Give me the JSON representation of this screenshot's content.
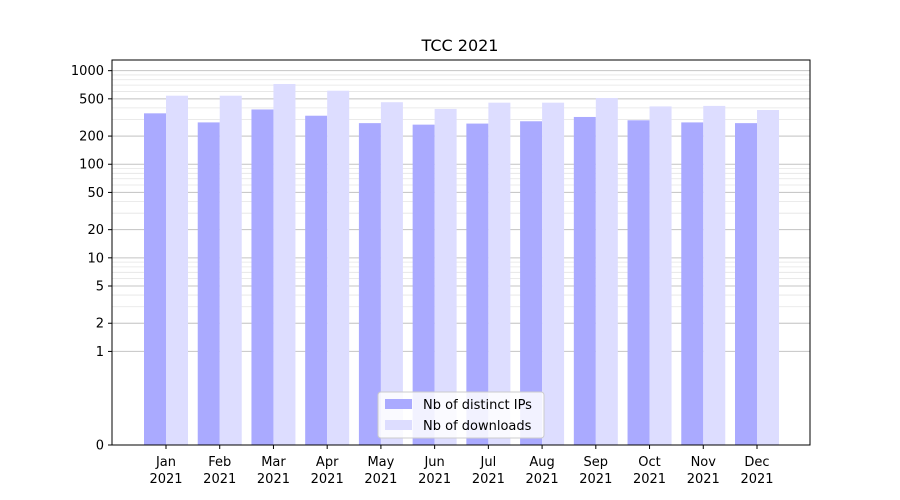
{
  "chart_data": {
    "type": "bar",
    "title": "TCC 2021",
    "xlabel": "",
    "ylabel": "",
    "yscale": "symlog",
    "ylim": [
      0,
      1300
    ],
    "yticks": [
      0,
      1,
      2,
      5,
      10,
      20,
      50,
      100,
      200,
      500,
      1000
    ],
    "ytick_labels": [
      "0",
      "1",
      "2",
      "5",
      "10",
      "20",
      "50",
      "100",
      "200",
      "500",
      "1000"
    ],
    "grid": "y",
    "categories": [
      [
        "Jan",
        "2021"
      ],
      [
        "Feb",
        "2021"
      ],
      [
        "Mar",
        "2021"
      ],
      [
        "Apr",
        "2021"
      ],
      [
        "May",
        "2021"
      ],
      [
        "Jun",
        "2021"
      ],
      [
        "Jul",
        "2021"
      ],
      [
        "Aug",
        "2021"
      ],
      [
        "Sep",
        "2021"
      ],
      [
        "Oct",
        "2021"
      ],
      [
        "Nov",
        "2021"
      ],
      [
        "Dec",
        "2021"
      ]
    ],
    "series": [
      {
        "name": "Nb of distinct IPs",
        "color": "#aaaaff",
        "values": [
          350,
          280,
          385,
          330,
          275,
          265,
          272,
          288,
          320,
          295,
          280,
          275
        ]
      },
      {
        "name": "Nb of downloads",
        "color": "#ddddff",
        "values": [
          540,
          540,
          720,
          610,
          460,
          390,
          455,
          455,
          510,
          415,
          420,
          380
        ]
      }
    ],
    "legend": "bottom-center"
  }
}
